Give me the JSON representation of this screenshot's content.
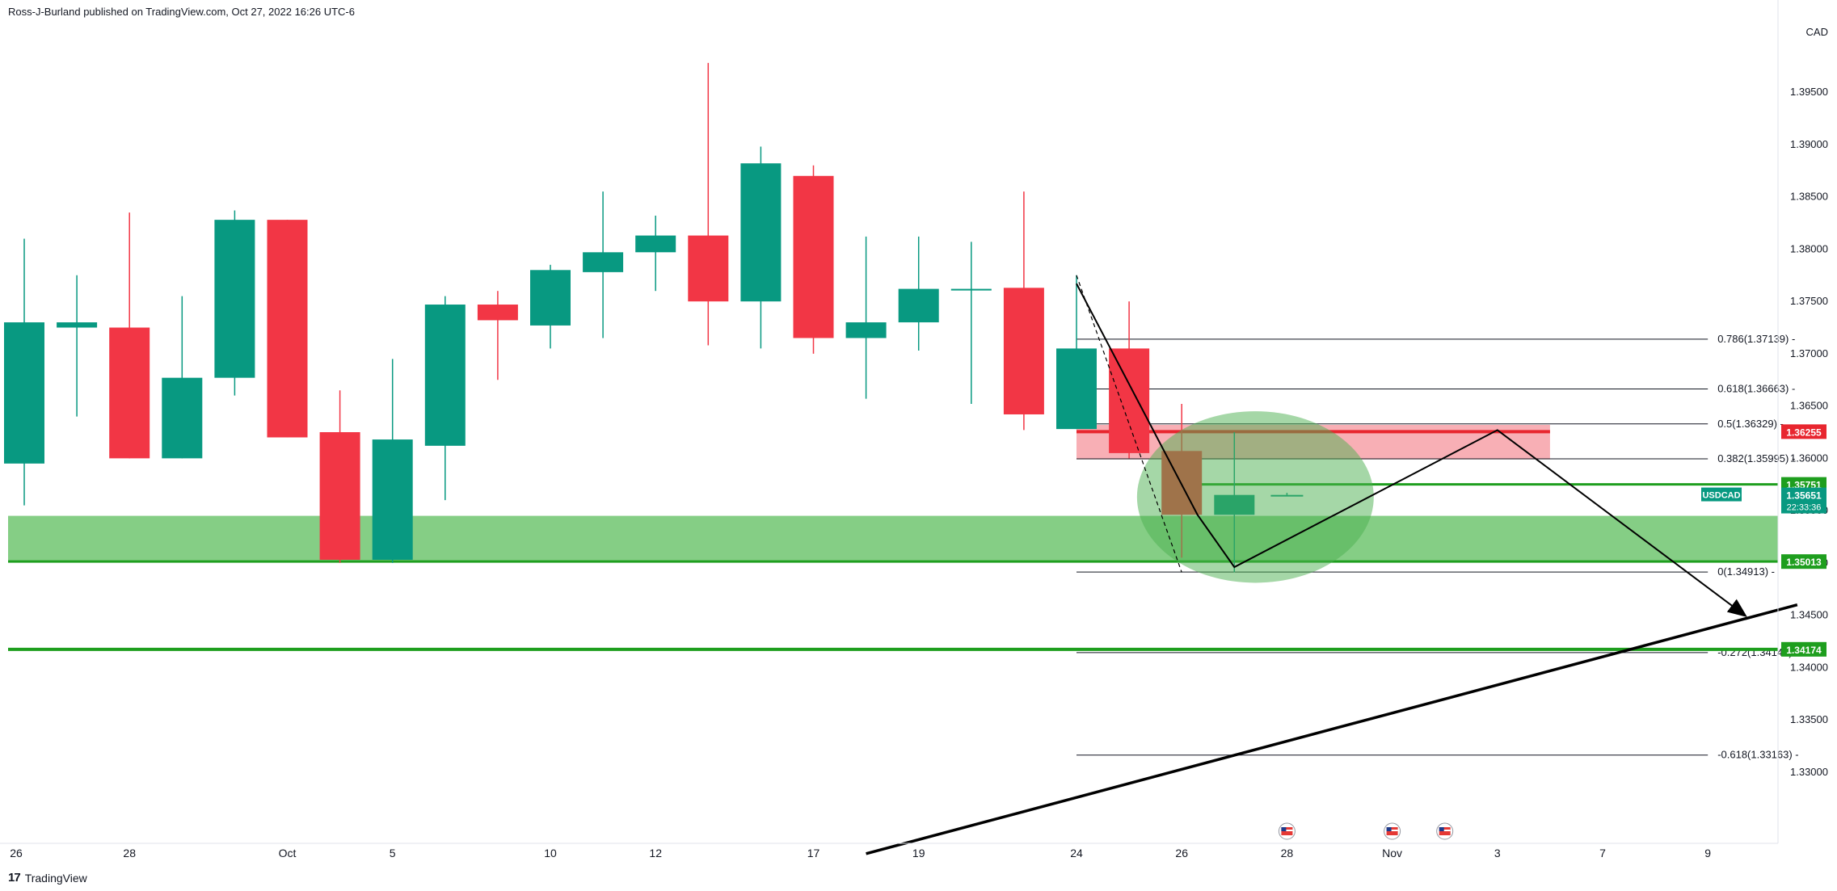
{
  "header": {
    "publisher_text": "Ross-J-Burland published on TradingView.com, Oct 27, 2022 16:26 UTC-6"
  },
  "footer": {
    "brand": "TradingView",
    "logo_icon": "tradingview-logo-icon"
  },
  "colors": {
    "up": "#089981",
    "down": "#f23645",
    "green_zone": "#66c266",
    "green_line": "#1e9e1e",
    "red_zone": "#f7a1a8",
    "red_line": "#e8262f",
    "trend": "#000000",
    "fib": "#131722",
    "axis_text": "#131722"
  },
  "chart_data": {
    "type": "candlestick",
    "symbol": "USDCAD",
    "currency_label": "CAD",
    "price_axis": {
      "range": [
        1.3235,
        1.4015
      ],
      "ticks": [
        "1.33000",
        "1.33500",
        "1.34000",
        "1.34500",
        "1.35000",
        "1.35500",
        "1.36000",
        "1.36500",
        "1.37000",
        "1.37500",
        "1.38000",
        "1.38500",
        "1.39000",
        "1.39500"
      ],
      "tick_values": [
        1.33,
        1.335,
        1.34,
        1.345,
        1.35,
        1.355,
        1.36,
        1.365,
        1.37,
        1.375,
        1.38,
        1.385,
        1.39,
        1.395
      ]
    },
    "time_axis": {
      "labels": [
        "26",
        "28",
        "Oct",
        "5",
        "10",
        "12",
        "17",
        "19",
        "24",
        "26",
        "28",
        "Nov",
        "3",
        "7",
        "9"
      ],
      "label_index": [
        0,
        2,
        5,
        7,
        10,
        12,
        15,
        17,
        20,
        22,
        24,
        26,
        28,
        30,
        32
      ]
    },
    "candles": [
      {
        "o": 1.3595,
        "h": 1.381,
        "l": 1.3555,
        "c": 1.373
      },
      {
        "o": 1.3725,
        "h": 1.3775,
        "l": 1.364,
        "c": 1.373
      },
      {
        "o": 1.3725,
        "h": 1.3835,
        "l": 1.36,
        "c": 1.36
      },
      {
        "o": 1.36,
        "h": 1.3755,
        "l": 1.36,
        "c": 1.3677
      },
      {
        "o": 1.3677,
        "h": 1.3837,
        "l": 1.366,
        "c": 1.3828
      },
      {
        "o": 1.3828,
        "h": 1.3828,
        "l": 1.362,
        "c": 1.362
      },
      {
        "o": 1.3625,
        "h": 1.3665,
        "l": 1.35,
        "c": 1.3503
      },
      {
        "o": 1.3503,
        "h": 1.3695,
        "l": 1.35,
        "c": 1.3618
      },
      {
        "o": 1.3612,
        "h": 1.3755,
        "l": 1.356,
        "c": 1.3747
      },
      {
        "o": 1.3747,
        "h": 1.376,
        "l": 1.3675,
        "c": 1.3732
      },
      {
        "o": 1.3727,
        "h": 1.3785,
        "l": 1.3705,
        "c": 1.378
      },
      {
        "o": 1.3778,
        "h": 1.3855,
        "l": 1.3715,
        "c": 1.3797
      },
      {
        "o": 1.3797,
        "h": 1.3832,
        "l": 1.376,
        "c": 1.3813
      },
      {
        "o": 1.3813,
        "h": 1.3978,
        "l": 1.3708,
        "c": 1.375
      },
      {
        "o": 1.375,
        "h": 1.3898,
        "l": 1.3705,
        "c": 1.3882
      },
      {
        "o": 1.387,
        "h": 1.388,
        "l": 1.37,
        "c": 1.3715
      },
      {
        "o": 1.3715,
        "h": 1.3812,
        "l": 1.3657,
        "c": 1.373
      },
      {
        "o": 1.373,
        "h": 1.3812,
        "l": 1.3703,
        "c": 1.3762
      },
      {
        "o": 1.3762,
        "h": 1.3807,
        "l": 1.3652,
        "c": 1.3762
      },
      {
        "o": 1.3763,
        "h": 1.3855,
        "l": 1.3627,
        "c": 1.3642
      },
      {
        "o": 1.3628,
        "h": 1.3775,
        "l": 1.3628,
        "c": 1.3705
      },
      {
        "o": 1.3705,
        "h": 1.375,
        "l": 1.36,
        "c": 1.3605
      },
      {
        "o": 1.3607,
        "h": 1.3652,
        "l": 1.3505,
        "c": 1.3546
      },
      {
        "o": 1.3546,
        "h": 1.3625,
        "l": 1.3491,
        "c": 1.3565
      },
      {
        "o": 1.3565,
        "h": 1.3567,
        "l": 1.3564,
        "c": 1.3565
      }
    ],
    "zones": [
      {
        "name": "green-support-zone",
        "from_index": 0,
        "to_index": "edge",
        "low": 1.3501,
        "high": 1.3545,
        "color": "green"
      },
      {
        "name": "red-resistance-zone",
        "from_index": 20,
        "to_index": 29,
        "low": 1.3599,
        "high": 1.3632,
        "color": "red"
      }
    ],
    "horizontal_lines": [
      {
        "name": "line-1-36255",
        "price": 1.36255,
        "from_index": 20,
        "to_index": 29,
        "color": "red_line",
        "width": 4
      },
      {
        "name": "line-1-35751",
        "price": 1.35751,
        "from_index": 22,
        "to_index": "edge",
        "color": "green_line",
        "width": 3
      },
      {
        "name": "line-1-35013",
        "price": 1.35013,
        "from_index": 0,
        "to_index": "edge",
        "color": "green_line",
        "width": 3
      },
      {
        "name": "line-1-34174",
        "price": 1.34174,
        "from_index": 0,
        "to_index": "edge",
        "color": "green_line",
        "width": 4
      }
    ],
    "fib_levels": [
      {
        "label": "0.786(1.37139)",
        "price": 1.37139
      },
      {
        "label": "0.618(1.36663)",
        "price": 1.36663
      },
      {
        "label": "0.5(1.36329)",
        "price": 1.36329
      },
      {
        "label": "0.382(1.35995)",
        "price": 1.35995
      },
      {
        "label": "0(1.34913)",
        "price": 1.34913
      },
      {
        "label": "-0.272(1.34143)",
        "price": 1.34143
      },
      {
        "label": "-0.618(1.33163)",
        "price": 1.33163
      }
    ],
    "fib_range": {
      "from_index": 20,
      "to_index": 32
    },
    "fib_diagonal": [
      {
        "i": 20,
        "p": 1.3775
      },
      {
        "i": 22,
        "p": 1.3491
      }
    ],
    "projection_path": [
      {
        "i": 20,
        "p": 1.3767
      },
      {
        "i": 22.3,
        "p": 1.3546
      },
      {
        "i": 23,
        "p": 1.3496
      },
      {
        "i": 28,
        "p": 1.3627
      },
      {
        "i": 32.7,
        "p": 1.345
      }
    ],
    "trendline": [
      {
        "i": 16,
        "p": 1.3222
      },
      {
        "i": 33.7,
        "p": 1.346
      }
    ],
    "ellipse": {
      "cx_index": 23.4,
      "cy_price": 1.3563,
      "rx_bars": 2.25,
      "ry_price": 0.0082
    },
    "price_badges": [
      {
        "text": "1.36255",
        "price": 1.36255,
        "color": "red_line"
      },
      {
        "text": "1.35751",
        "price": 1.35751,
        "color": "green_line"
      },
      {
        "text": "1.35013",
        "price": 1.35013,
        "color": "green_line"
      },
      {
        "text": "1.34174",
        "price": 1.34174,
        "color": "green_line"
      }
    ],
    "last_price_badge": {
      "symbol": "USDCAD",
      "price_text": "1.35651",
      "countdown": "22:33:36",
      "price": 1.35651
    },
    "event_markers": [
      {
        "i": 24
      },
      {
        "i": 26
      },
      {
        "i": 27
      }
    ],
    "event_marker_icon": "us-flag-icon"
  }
}
